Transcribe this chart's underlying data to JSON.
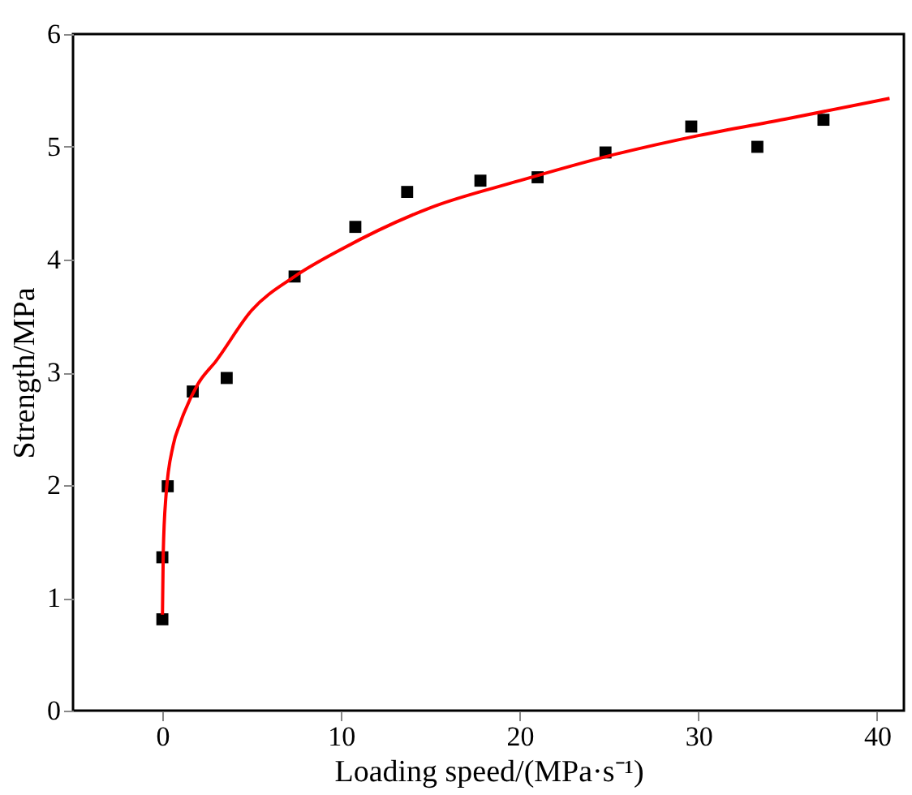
{
  "chart_data": {
    "type": "scatter",
    "xlabel": "Loading speed/(MPa·s⁻¹)",
    "ylabel": "Strength/MPa",
    "xlim": [
      -5,
      41.5
    ],
    "xticks": [
      0,
      10,
      20,
      30,
      40
    ],
    "ylim": [
      0,
      6
    ],
    "yticks": [
      0,
      1,
      2,
      3,
      4,
      5,
      6
    ],
    "grid": false,
    "series": [
      {
        "marker": "square",
        "color": "#000000",
        "x": [
          0,
          0,
          0.3,
          1.7,
          3.6,
          7.4,
          10.8,
          13.7,
          17.8,
          21.0,
          24.8,
          29.6,
          33.3,
          37.0
        ],
        "values": [
          0.81,
          1.36,
          1.99,
          2.83,
          2.95,
          3.85,
          4.29,
          4.6,
          4.7,
          4.73,
          4.95,
          5.18,
          5.0,
          5.24
        ]
      },
      {
        "type": "line",
        "marker": "none",
        "color": "#ff0000",
        "x": [
          0.005,
          0.05,
          0.2,
          0.6,
          1,
          2,
          3,
          5,
          7.4,
          10,
          15,
          20,
          25,
          30,
          35,
          40.7
        ],
        "values": [
          0.85,
          1.4,
          1.9,
          2.35,
          2.55,
          2.9,
          3.1,
          3.55,
          3.85,
          4.09,
          4.46,
          4.7,
          4.92,
          5.1,
          5.25,
          5.43
        ]
      }
    ]
  }
}
